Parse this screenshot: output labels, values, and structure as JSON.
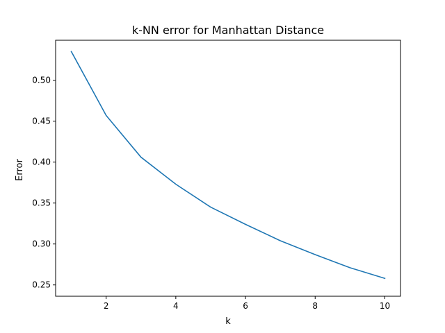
{
  "chart_data": {
    "type": "line",
    "title": "k-NN error for Manhattan Distance",
    "xlabel": "k",
    "ylabel": "Error",
    "x": [
      1,
      2,
      3,
      4,
      5,
      6,
      7,
      8,
      9,
      10
    ],
    "series": [
      {
        "values": [
          0.535,
          0.457,
          0.406,
          0.373,
          0.345,
          0.324,
          0.304,
          0.287,
          0.271,
          0.258
        ],
        "color": "#1f77b4"
      }
    ],
    "xlim": [
      0.55,
      10.45
    ],
    "ylim": [
      0.2362,
      0.5488
    ],
    "xticks": [
      2,
      4,
      6,
      8,
      10
    ],
    "yticks": [
      0.25,
      0.3,
      0.35,
      0.4,
      0.45,
      0.5
    ],
    "ytick_labels": [
      "0.25",
      "0.30",
      "0.35",
      "0.40",
      "0.45",
      "0.50"
    ],
    "grid": false,
    "legend": "none"
  }
}
